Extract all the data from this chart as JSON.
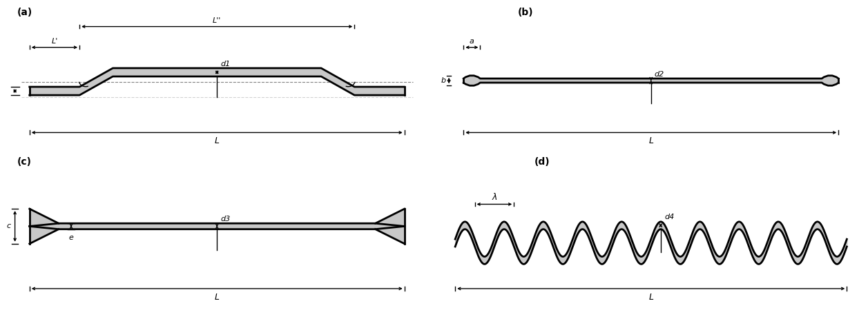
{
  "bg_color": "#ffffff",
  "fiber_fill": "#c8c8c8",
  "fiber_edge": "#000000",
  "label_a": "(a)",
  "label_b": "(b)",
  "label_c": "(c)",
  "label_d": "(d)",
  "dim_Lpp": "L''",
  "dim_Lp": "L'",
  "dim_d1": "d1",
  "dim_d2": "d2",
  "dim_d3": "d3",
  "dim_d4": "d4",
  "dim_L": "L",
  "dim_a": "a",
  "dim_b": "b",
  "dim_c": "c",
  "dim_e": "e",
  "dim_lambda": "λ"
}
